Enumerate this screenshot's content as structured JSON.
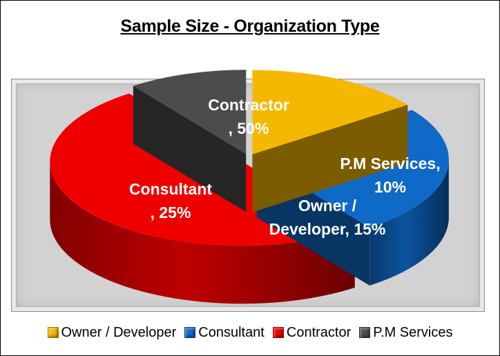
{
  "chart_data": {
    "type": "pie",
    "style": "3d-exploded",
    "title": "Sample Size - Organization Type",
    "slices": [
      {
        "name": "Owner / Developer",
        "value": 15,
        "label": [
          "Owner /",
          "Developer, 15%"
        ],
        "color": "#f5b800"
      },
      {
        "name": "Consultant",
        "value": 25,
        "label": [
          "Consultant",
          ", 25%"
        ],
        "color": "#0e69c7"
      },
      {
        "name": "Contractor",
        "value": 50,
        "label": [
          "Contractor",
          ", 50%"
        ],
        "color": "#ee0000"
      },
      {
        "name": "P.M Services",
        "value": 10,
        "label": [
          "P.M Services,",
          "10%"
        ],
        "color": "#4c4c4c"
      }
    ],
    "legend_position": "bottom"
  }
}
